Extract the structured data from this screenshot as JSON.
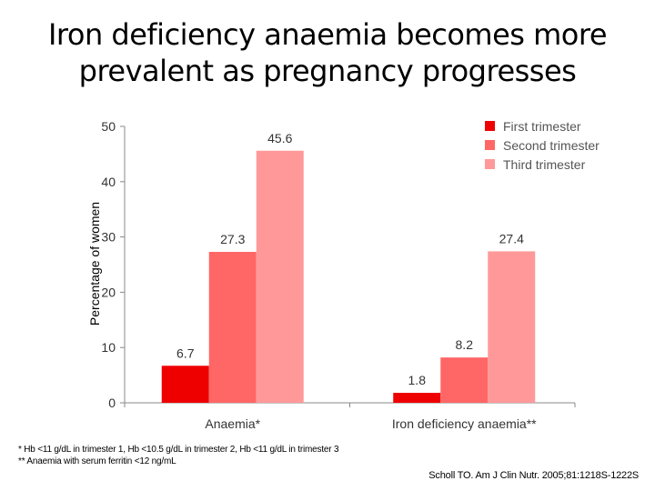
{
  "title_lines": [
    "Iron deficiency anaemia becomes more",
    "prevalent as pregnancy progresses"
  ],
  "chart_data": {
    "type": "bar",
    "categories": [
      "Anaemia*",
      "Iron deficiency anaemia**"
    ],
    "series": [
      {
        "name": "First trimester",
        "values": [
          6.7,
          1.8
        ],
        "color": "#ee0000"
      },
      {
        "name": "Second trimester",
        "values": [
          27.3,
          8.2
        ],
        "color": "#ff6666"
      },
      {
        "name": "Third trimester",
        "values": [
          45.6,
          27.4
        ],
        "color": "#ff9999"
      }
    ],
    "ylabel": "Percentage of women",
    "xlabel": "",
    "ylim": [
      0,
      50
    ],
    "yticks": [
      0,
      10,
      20,
      30,
      40,
      50
    ],
    "legend": "top-right",
    "grid": false
  },
  "footnotes": [
    "*  Hb <11 g/dL in trimester 1, Hb <10.5 g/dL in trimester 2, Hb <11 g/dL in trimester 3",
    "** Anaemia with serum ferritin <12 ng/mL"
  ],
  "citation": "Scholl TO. Am J Clin Nutr. 2005;81:1218S-1222S"
}
